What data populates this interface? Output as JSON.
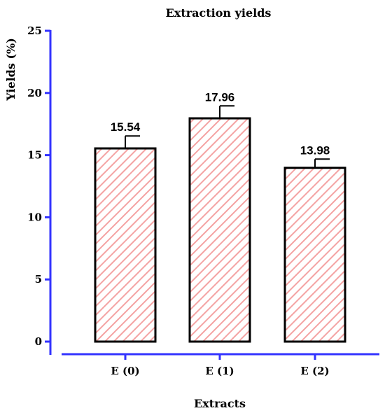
{
  "chart_data": {
    "type": "bar",
    "title": "Extraction yields",
    "xlabel": "Extracts",
    "ylabel": "Yields (%)",
    "categories": [
      "E (0)",
      "E (1)",
      "E (2)"
    ],
    "values": [
      15.54,
      17.96,
      13.98
    ],
    "error": [
      1.0,
      1.0,
      0.7
    ],
    "data_labels": [
      "15.54",
      "17.96",
      "13.98"
    ],
    "ylim": [
      0,
      25
    ],
    "yticks": [
      0,
      5,
      10,
      15,
      20,
      25
    ],
    "ytick_labels": [
      "0",
      "5",
      "10",
      "15",
      "20",
      "25"
    ],
    "grid": false,
    "legend": "none",
    "colors": {
      "axis": "#3333ff",
      "bar_hatch": "#f4a3a3",
      "bar_edge": "#000000",
      "text": "#000000"
    }
  }
}
